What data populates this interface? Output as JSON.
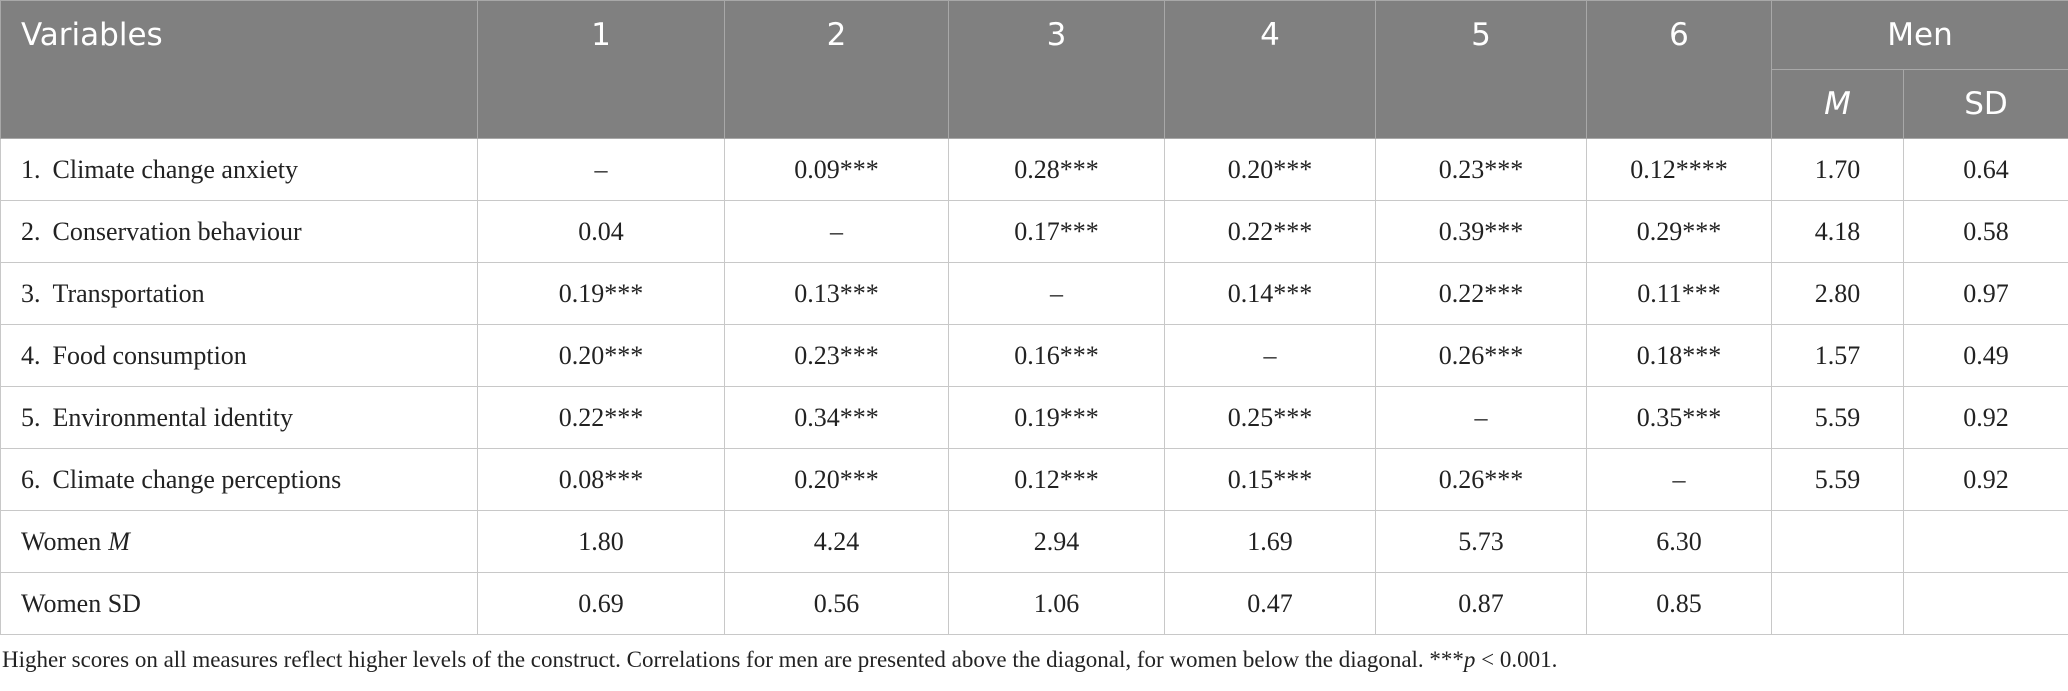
{
  "table": {
    "header": {
      "columns": [
        "Variables",
        "1",
        "2",
        "3",
        "4",
        "5",
        "6",
        "Men"
      ],
      "sub": [
        "M",
        "SD"
      ]
    },
    "rows": [
      {
        "number": "1.",
        "name": "Climate change anxiety",
        "cells": [
          "–",
          "0.09***",
          "0.28***",
          "0.20***",
          "0.23***",
          "0.12****",
          "1.70",
          "0.64"
        ]
      },
      {
        "number": "2.",
        "name": "Conservation behaviour",
        "cells": [
          "0.04",
          "–",
          "0.17***",
          "0.22***",
          "0.39***",
          "0.29***",
          "4.18",
          "0.58"
        ]
      },
      {
        "number": "3.",
        "name": "Transportation",
        "cells": [
          "0.19***",
          "0.13***",
          "–",
          "0.14***",
          "0.22***",
          "0.11***",
          "2.80",
          "0.97"
        ]
      },
      {
        "number": "4.",
        "name": "Food consumption",
        "cells": [
          "0.20***",
          "0.23***",
          "0.16***",
          "–",
          "0.26***",
          "0.18***",
          "1.57",
          "0.49"
        ]
      },
      {
        "number": "5.",
        "name": "Environmental identity",
        "cells": [
          "0.22***",
          "0.34***",
          "0.19***",
          "0.25***",
          "–",
          "0.35***",
          "5.59",
          "0.92"
        ]
      },
      {
        "number": "6.",
        "name": "Climate change perceptions",
        "cells": [
          "0.08***",
          "0.20***",
          "0.12***",
          "0.15***",
          "0.26***",
          "–",
          "5.59",
          "0.92"
        ]
      },
      {
        "name": "Women",
        "name_italic": "M",
        "cells": [
          "1.80",
          "4.24",
          "2.94",
          "1.69",
          "5.73",
          "6.30"
        ]
      },
      {
        "name": "Women SD",
        "cells": [
          "0.69",
          "0.56",
          "1.06",
          "0.47",
          "0.87",
          "0.85"
        ]
      }
    ]
  },
  "footnote": [
    "Higher scores on all measures reflect higher levels of the construct. Correlations for men are presented above the diagonal, for women below the diagonal. ***",
    "p",
    " < 0.001."
  ]
}
